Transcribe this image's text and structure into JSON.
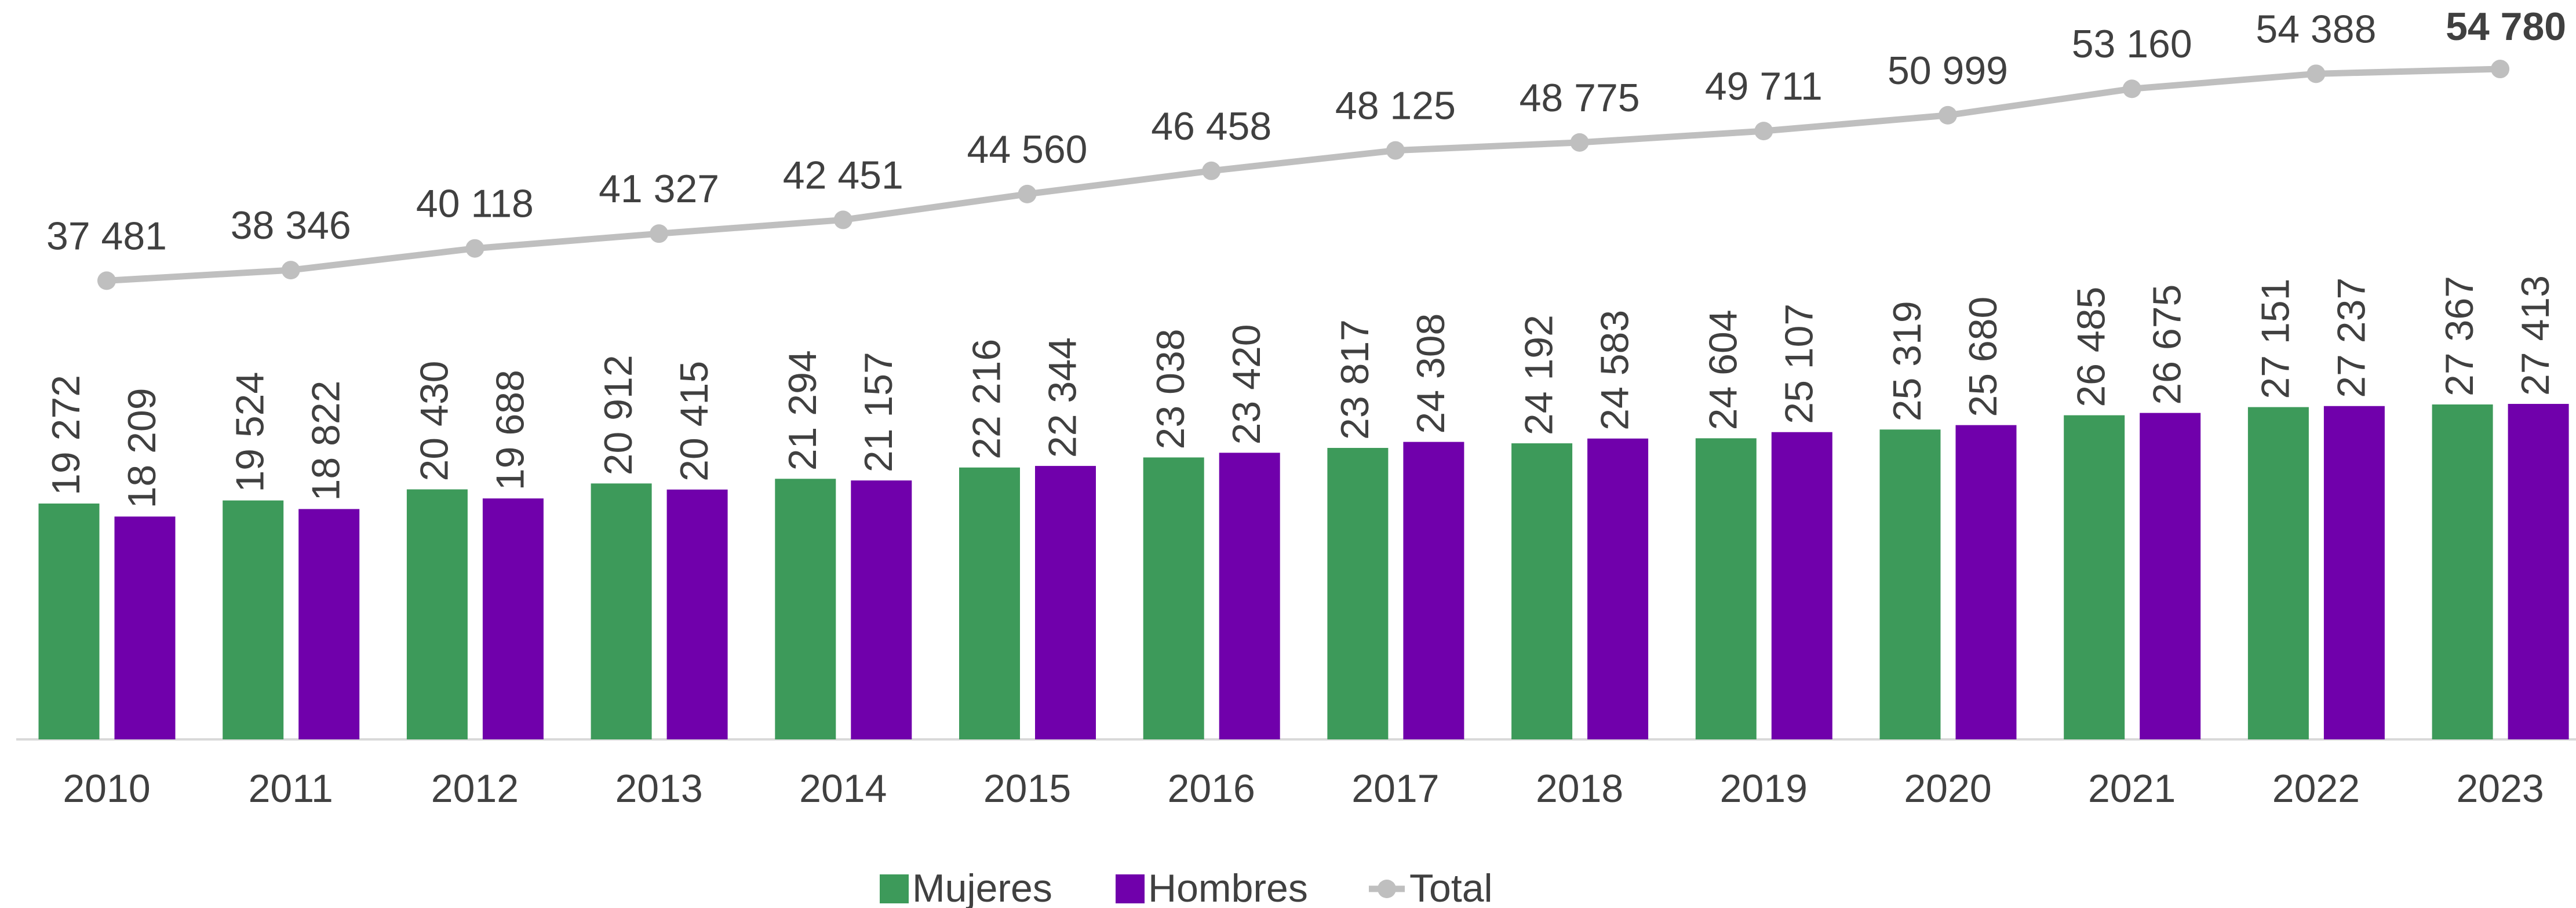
{
  "chart_data": {
    "type": "bar",
    "categories": [
      "2010",
      "2011",
      "2012",
      "2013",
      "2014",
      "2015",
      "2016",
      "2017",
      "2018",
      "2019",
      "2020",
      "2021",
      "2022",
      "2023"
    ],
    "series": [
      {
        "name": "Mujeres",
        "color": "#3d9a5a",
        "type": "bar",
        "values": [
          19272,
          19524,
          20430,
          20912,
          21294,
          22216,
          23038,
          23817,
          24192,
          24604,
          25319,
          26485,
          27151,
          27367
        ],
        "value_labels": [
          "19 272",
          "19 524",
          "20 430",
          "20 912",
          "21 294",
          "22 216",
          "23 038",
          "23 817",
          "24 192",
          "24 604",
          "25 319",
          "26 485",
          "27 151",
          "27 367"
        ]
      },
      {
        "name": "Hombres",
        "color": "#7000ab",
        "type": "bar",
        "values": [
          18209,
          18822,
          19688,
          20415,
          21157,
          22344,
          23420,
          24308,
          24583,
          25107,
          25680,
          26675,
          27237,
          27413
        ],
        "value_labels": [
          "18 209",
          "18 822",
          "19 688",
          "20 415",
          "21 157",
          "22 344",
          "23 420",
          "24 308",
          "24 583",
          "25 107",
          "25 680",
          "26 675",
          "27 237",
          "27 413"
        ]
      },
      {
        "name": "Total",
        "color": "#bfbfbf",
        "type": "line",
        "values": [
          37481,
          38346,
          40118,
          41327,
          42451,
          44560,
          46458,
          48125,
          48775,
          49711,
          50999,
          53160,
          54388,
          54780
        ],
        "value_labels": [
          "37 481",
          "38 346",
          "40 118",
          "41 327",
          "42 451",
          "44 560",
          "46 458",
          "48 125",
          "48 775",
          "49 711",
          "50 999",
          "53 160",
          "54 388",
          "54 780"
        ]
      }
    ],
    "legend": "bottom"
  }
}
